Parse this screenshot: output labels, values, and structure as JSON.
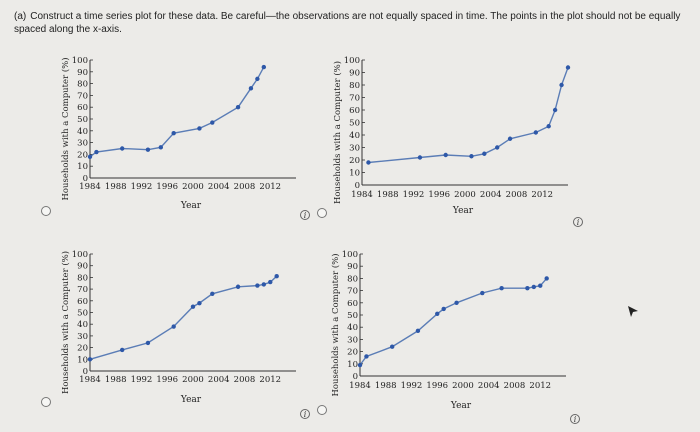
{
  "question": {
    "label": "(a)",
    "text": "Construct a time series plot for these data. Be careful—the observations are not equally spaced in time. The points in the plot should not be equally spaced along the x-axis."
  },
  "info_symbol": "i",
  "colors": {
    "line": "#5b7db6",
    "point": "#2e58a8",
    "axis": "#333333"
  },
  "chart_data": [
    {
      "type": "line",
      "xlabel": "Year",
      "ylabel": "Households with a Computer (%)",
      "x_ticks": [
        "1984",
        "1988",
        "1992",
        "1996",
        "2000",
        "2004",
        "2008",
        "2012"
      ],
      "y_ticks": [
        "0",
        "10",
        "20",
        "30",
        "40",
        "50",
        "60",
        "70",
        "80",
        "90",
        "100"
      ],
      "ylim": [
        0,
        100
      ],
      "x": [
        1984,
        1985,
        1989,
        1993,
        1995,
        1997,
        2001,
        2003,
        2007,
        2009,
        2010,
        2011
      ],
      "y": [
        18,
        22,
        25,
        24,
        26,
        38,
        42,
        47,
        60,
        76,
        84,
        94
      ]
    },
    {
      "type": "line",
      "xlabel": "Year",
      "ylabel": "Households with a Computer (%)",
      "x_ticks": [
        "1984",
        "1988",
        "1992",
        "1996",
        "2000",
        "2004",
        "2008",
        "2012"
      ],
      "y_ticks": [
        "0",
        "10",
        "20",
        "30",
        "40",
        "50",
        "60",
        "70",
        "80",
        "90",
        "100"
      ],
      "ylim": [
        0,
        100
      ],
      "x": [
        1985,
        1993,
        1997,
        2001,
        2003,
        2005,
        2007,
        2011,
        2013,
        2014,
        2015,
        2016
      ],
      "y": [
        18,
        22,
        24,
        23,
        25,
        30,
        37,
        42,
        47,
        60,
        80,
        94
      ]
    },
    {
      "type": "line",
      "xlabel": "Year",
      "ylabel": "Households with a Computer (%)",
      "x_ticks": [
        "1984",
        "1988",
        "1992",
        "1996",
        "2000",
        "2004",
        "2008",
        "2012"
      ],
      "y_ticks": [
        "0",
        "10",
        "20",
        "30",
        "40",
        "50",
        "60",
        "70",
        "80",
        "90",
        "100"
      ],
      "ylim": [
        0,
        100
      ],
      "x": [
        1984,
        1989,
        1993,
        1997,
        2000,
        2001,
        2003,
        2007,
        2010,
        2011,
        2012,
        2013
      ],
      "y": [
        10,
        18,
        24,
        38,
        55,
        58,
        66,
        72,
        73,
        74,
        76,
        81
      ]
    },
    {
      "type": "line",
      "xlabel": "Year",
      "ylabel": "Households with a Computer (%)",
      "x_ticks": [
        "1984",
        "1988",
        "1992",
        "1996",
        "2000",
        "2004",
        "2008",
        "2012"
      ],
      "y_ticks": [
        "0",
        "10",
        "20",
        "30",
        "40",
        "50",
        "60",
        "70",
        "80",
        "90",
        "100"
      ],
      "ylim": [
        0,
        100
      ],
      "x": [
        1984,
        1985,
        1989,
        1993,
        1996,
        1997,
        1999,
        2003,
        2006,
        2010,
        2011,
        2012,
        2013
      ],
      "y": [
        9,
        16,
        24,
        37,
        51,
        55,
        60,
        68,
        72,
        72,
        73,
        74,
        80
      ]
    }
  ]
}
